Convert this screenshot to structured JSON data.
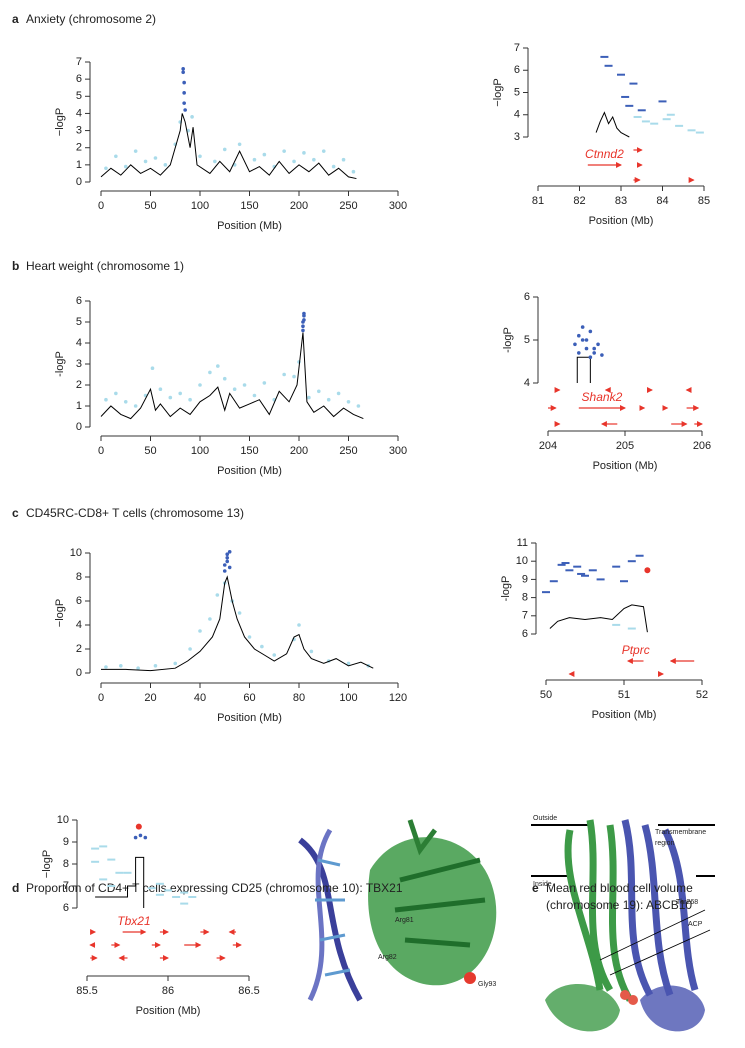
{
  "panels": [
    {
      "letter": "a",
      "title": [
        "Anxiety (chromosome 2)"
      ]
    },
    {
      "letter": "b",
      "title": [
        "Heart weight (chromosome 1)"
      ]
    },
    {
      "letter": "c",
      "title": [
        "CD45RC-CD8+ T cells (chromosome 13)"
      ]
    },
    {
      "letter": "d",
      "title": [
        "Proportion of CD4+ T cells expressing CD25 (chromosome 10): TBX21"
      ]
    },
    {
      "letter": "e",
      "title": [
        "Mean red blood cell volume",
        "(chromosome 19): ABCB10"
      ]
    }
  ],
  "structures": {
    "d": [
      "Arg81",
      "Arg82",
      "Gly93"
    ],
    "e": [
      "Outside",
      "Transmembrane",
      "region",
      "Inside",
      "Thr268",
      "ACP"
    ]
  },
  "chart_data": [
    {
      "type": "locus",
      "xlabel": "Position (Mb)",
      "ylabel": "−logP",
      "xlim": [
        0,
        300
      ],
      "ylim": [
        0,
        7
      ],
      "xticks": [
        0,
        50,
        100,
        150,
        200,
        250,
        300
      ],
      "yticks": [
        0,
        1,
        2,
        3,
        4,
        5,
        6,
        7
      ],
      "series": [
        {
          "mode": "points",
          "color": "#a9dbea",
          "x": [
            5,
            15,
            25,
            35,
            45,
            55,
            65,
            75,
            80,
            88,
            92,
            100,
            115,
            125,
            135,
            140,
            155,
            165,
            175,
            185,
            195,
            205,
            215,
            225,
            235,
            245,
            255
          ],
          "values": [
            0.8,
            1.5,
            0.9,
            1.8,
            1.2,
            1.4,
            1.0,
            2.2,
            3.5,
            3.0,
            3.8,
            1.5,
            1.2,
            1.9,
            1.0,
            2.2,
            1.3,
            1.6,
            0.9,
            1.8,
            1.2,
            1.7,
            1.3,
            1.8,
            0.9,
            1.3,
            0.6
          ]
        },
        {
          "mode": "line",
          "color": "#000000",
          "x": [
            0,
            10,
            20,
            30,
            40,
            50,
            60,
            70,
            80,
            82,
            85,
            90,
            93,
            97,
            110,
            120,
            130,
            140,
            150,
            160,
            170,
            180,
            190,
            200,
            210,
            220,
            230,
            240,
            250,
            258
          ],
          "values": [
            0.3,
            0.8,
            0.4,
            1.0,
            0.5,
            0.8,
            0.4,
            1.0,
            3.0,
            4.0,
            3.5,
            2.0,
            3.2,
            1.0,
            0.5,
            1.2,
            0.6,
            1.8,
            0.6,
            0.9,
            0.4,
            1.2,
            0.5,
            1.0,
            0.6,
            1.1,
            0.4,
            0.8,
            0.3,
            0.2
          ]
        },
        {
          "mode": "points",
          "color": "#3c5fb8",
          "x": [
            83,
            83,
            84,
            84,
            84,
            85
          ],
          "values": [
            6.6,
            6.4,
            5.8,
            5.2,
            4.6,
            4.2
          ]
        }
      ]
    },
    {
      "type": "locus",
      "xlabel": "Position (Mb)",
      "ylabel": "−logP",
      "xlim": [
        81,
        85
      ],
      "ylim": [
        3,
        7
      ],
      "xticks": [
        81,
        82,
        83,
        84,
        85
      ],
      "yticks": [
        3,
        4,
        5,
        6,
        7
      ],
      "series": [
        {
          "mode": "dash",
          "color": "#a9dbea",
          "x": [
            83.4,
            83.6,
            83.8,
            84.1,
            84.2,
            84.4,
            84.7,
            84.9
          ],
          "values": [
            3.9,
            3.7,
            3.6,
            3.8,
            4.0,
            3.5,
            3.3,
            3.2
          ]
        },
        {
          "mode": "line",
          "color": "#000000",
          "x": [
            82.4,
            82.5,
            82.6,
            82.7,
            82.8,
            82.9,
            83.0,
            83.1,
            83.2
          ],
          "values": [
            3.2,
            3.7,
            4.1,
            3.6,
            3.9,
            3.4,
            3.2,
            3.1,
            3.0
          ]
        },
        {
          "mode": "dash",
          "color": "#3c5fb8",
          "x": [
            82.6,
            82.7,
            83.0,
            83.3,
            83.1,
            83.2,
            83.5,
            84.0
          ],
          "values": [
            6.6,
            6.2,
            5.8,
            5.4,
            4.8,
            4.4,
            4.2,
            4.6
          ]
        }
      ],
      "genes": [
        [
          {
            "start": 83.3,
            "end": 83.5
          }
        ],
        [
          {
            "label": "Ctnnd2",
            "start": 82.2,
            "end": 83.0
          },
          {
            "start": 83.4,
            "end": 83.5
          }
        ],
        [
          {
            "start": 83.3,
            "end": 83.45
          },
          {
            "start": 84.7,
            "end": 84.75
          }
        ]
      ]
    },
    {
      "type": "locus",
      "xlabel": "Position (Mb)",
      "ylabel": "-logP",
      "xlim": [
        0,
        300
      ],
      "ylim": [
        0,
        6
      ],
      "xticks": [
        0,
        50,
        100,
        150,
        200,
        250,
        300
      ],
      "yticks": [
        0,
        1,
        2,
        3,
        4,
        5,
        6
      ],
      "series": [
        {
          "mode": "points",
          "color": "#a9dbea",
          "x": [
            5,
            15,
            25,
            35,
            45,
            52,
            60,
            70,
            80,
            90,
            100,
            110,
            118,
            125,
            135,
            145,
            155,
            165,
            175,
            185,
            195,
            200,
            210,
            220,
            230,
            240,
            250,
            260
          ],
          "values": [
            1.3,
            1.6,
            1.2,
            1.0,
            1.5,
            2.8,
            1.8,
            1.4,
            1.6,
            1.3,
            2.0,
            2.6,
            2.9,
            2.3,
            1.8,
            2.0,
            1.5,
            2.1,
            1.3,
            2.5,
            2.4,
            3.1,
            1.4,
            1.7,
            1.3,
            1.6,
            1.2,
            1.0
          ]
        },
        {
          "mode": "line",
          "color": "#000000",
          "x": [
            0,
            10,
            20,
            30,
            40,
            50,
            55,
            60,
            70,
            80,
            90,
            100,
            110,
            118,
            125,
            130,
            140,
            150,
            160,
            170,
            180,
            190,
            198,
            204,
            208,
            215,
            225,
            235,
            245,
            255,
            265
          ],
          "values": [
            0.5,
            1.0,
            0.6,
            0.4,
            0.9,
            1.8,
            0.8,
            1.1,
            0.5,
            0.9,
            0.6,
            1.2,
            1.5,
            1.9,
            0.8,
            1.6,
            0.9,
            1.1,
            1.3,
            0.6,
            1.7,
            1.2,
            2.0,
            4.5,
            1.2,
            0.7,
            1.0,
            0.5,
            0.9,
            0.6,
            0.4
          ]
        },
        {
          "mode": "points",
          "color": "#3c5fb8",
          "x": [
            204,
            204,
            204,
            205,
            205,
            205
          ],
          "values": [
            4.6,
            4.8,
            5.0,
            5.1,
            5.3,
            5.4
          ]
        }
      ]
    },
    {
      "type": "locus",
      "xlabel": "Position (Mb)",
      "ylabel": "-logP",
      "xlim": [
        204,
        206
      ],
      "ylim": [
        4,
        6
      ],
      "xticks": [
        204,
        205,
        206
      ],
      "yticks": [
        4,
        5,
        6
      ],
      "series": [
        {
          "mode": "line",
          "color": "#000000",
          "x": [
            204.38,
            204.38,
            204.55,
            204.55
          ],
          "values": [
            4.0,
            4.6,
            4.6,
            4.0
          ]
        },
        {
          "mode": "points",
          "color": "#3c5fb8",
          "x": [
            204.35,
            204.4,
            204.45,
            204.5,
            204.55,
            204.6,
            204.65,
            204.4,
            204.5,
            204.6,
            204.7,
            204.45,
            204.55
          ],
          "values": [
            4.9,
            5.1,
            5.3,
            5.0,
            5.2,
            4.8,
            4.9,
            4.7,
            4.8,
            4.7,
            4.65,
            5.0,
            4.6
          ]
        }
      ],
      "genes": [
        [
          {
            "start": 204.1,
            "end": 204.15
          },
          {
            "start": 204.8,
            "end": 204.75
          },
          {
            "start": 205.3,
            "end": 205.35
          },
          {
            "start": 205.85,
            "end": 205.8
          }
        ],
        [
          {
            "start": 204.0,
            "end": 204.1
          },
          {
            "label": "Shank2",
            "start": 204.4,
            "end": 205.0
          },
          {
            "start": 205.2,
            "end": 205.25
          },
          {
            "start": 205.5,
            "end": 205.55
          },
          {
            "start": 205.8,
            "end": 205.95
          }
        ],
        [
          {
            "start": 204.1,
            "end": 204.15
          },
          {
            "start": 204.9,
            "end": 204.7
          },
          {
            "start": 205.6,
            "end": 205.8
          },
          {
            "start": 205.9,
            "end": 206.0
          }
        ]
      ]
    },
    {
      "type": "locus",
      "xlabel": "Position (Mb)",
      "ylabel": "−logP",
      "xlim": [
        0,
        120
      ],
      "ylim": [
        0,
        10
      ],
      "xticks": [
        0,
        20,
        40,
        60,
        80,
        100,
        120
      ],
      "yticks": [
        0,
        2,
        4,
        6,
        8,
        10
      ],
      "series": [
        {
          "mode": "points",
          "color": "#a9dbea",
          "x": [
            2,
            8,
            15,
            22,
            30,
            36,
            40,
            44,
            47,
            50,
            53,
            56,
            60,
            65,
            70,
            78,
            80,
            85,
            92,
            100,
            108
          ],
          "values": [
            0.5,
            0.6,
            0.4,
            0.6,
            0.8,
            2.0,
            3.5,
            4.5,
            6.5,
            7.5,
            6.0,
            5.0,
            3.0,
            2.2,
            1.5,
            2.8,
            4.0,
            1.8,
            1.0,
            0.8,
            0.6
          ]
        },
        {
          "mode": "line",
          "color": "#000000",
          "x": [
            0,
            10,
            20,
            30,
            35,
            40,
            45,
            48,
            50,
            51,
            53,
            55,
            58,
            62,
            66,
            70,
            75,
            78,
            80,
            82,
            85,
            90,
            95,
            100,
            105,
            110
          ],
          "values": [
            0.3,
            0.3,
            0.2,
            0.4,
            1.0,
            1.8,
            3.0,
            4.5,
            7.5,
            8.0,
            6.0,
            4.5,
            3.0,
            2.0,
            1.5,
            1.0,
            1.6,
            3.0,
            3.2,
            2.0,
            1.2,
            0.8,
            1.2,
            0.6,
            0.9,
            0.4
          ]
        },
        {
          "mode": "points",
          "color": "#3c5fb8",
          "x": [
            50,
            50,
            51,
            51,
            51,
            52,
            52
          ],
          "values": [
            8.5,
            9.0,
            9.3,
            9.6,
            9.9,
            10.1,
            8.8
          ]
        }
      ]
    },
    {
      "type": "locus",
      "xlabel": "Position (Mb)",
      "ylabel": "-logP",
      "xlim": [
        50,
        52
      ],
      "ylim": [
        6,
        11
      ],
      "xticks": [
        50,
        51,
        52
      ],
      "yticks": [
        6,
        7,
        8,
        9,
        10,
        11
      ],
      "series": [
        {
          "mode": "dash",
          "color": "#3c5fb8",
          "x": [
            50.0,
            50.1,
            50.2,
            50.3,
            50.4,
            50.5,
            50.6,
            50.7,
            50.9,
            51.0,
            51.1,
            51.2,
            50.25,
            50.45
          ],
          "values": [
            8.3,
            8.9,
            9.8,
            9.5,
            9.7,
            9.2,
            9.5,
            9.0,
            9.7,
            8.9,
            10.0,
            10.3,
            9.9,
            9.3
          ]
        },
        {
          "mode": "dash",
          "color": "#a9dbea",
          "x": [
            50.9,
            51.1
          ],
          "values": [
            6.5,
            6.3
          ]
        },
        {
          "mode": "line",
          "color": "#000000",
          "x": [
            50.05,
            50.15,
            50.3,
            50.5,
            50.7,
            50.85,
            51.0,
            51.1,
            51.25,
            51.3
          ],
          "values": [
            6.3,
            6.7,
            6.9,
            6.8,
            6.9,
            6.8,
            7.4,
            7.6,
            7.5,
            6.1
          ]
        },
        {
          "mode": "points",
          "color": "#e8352b",
          "x": [
            51.3
          ],
          "values": [
            9.5
          ]
        }
      ],
      "genes": [
        [],
        [
          {
            "label": "Ptprc",
            "start": 51.25,
            "end": 51.05
          },
          {
            "start": 51.9,
            "end": 51.6
          }
        ],
        [
          {
            "start": 50.35,
            "end": 50.3
          },
          {
            "start": 51.45,
            "end": 51.5
          }
        ]
      ]
    },
    {
      "type": "locus",
      "xlabel": "Position (Mb)",
      "ylabel": "−logP",
      "xlim": [
        85.5,
        86.5
      ],
      "ylim": [
        6,
        10
      ],
      "xticks": [
        85.5,
        86,
        86.5
      ],
      "yticks": [
        6,
        7,
        8,
        9,
        10
      ],
      "series": [
        {
          "mode": "dash",
          "color": "#a9dbea",
          "x": [
            85.55,
            85.6,
            85.65,
            85.55,
            85.6,
            85.7,
            85.65,
            85.75,
            85.9,
            86.0,
            86.1,
            85.95,
            86.05,
            86.15,
            85.95,
            86.1
          ],
          "values": [
            8.7,
            8.8,
            8.2,
            8.1,
            7.3,
            7.6,
            7.0,
            7.6,
            6.9,
            6.8,
            6.7,
            6.6,
            6.5,
            6.5,
            7.1,
            6.2
          ]
        },
        {
          "mode": "line",
          "color": "#000000",
          "x": [
            85.55,
            85.75,
            85.75,
            85.8,
            85.8,
            85.85,
            85.85
          ],
          "values": [
            6.5,
            6.5,
            7.0,
            7.0,
            8.3,
            8.3,
            6.0
          ]
        },
        {
          "mode": "points",
          "color": "#3c5fb8",
          "x": [
            85.8,
            85.83,
            85.86
          ],
          "values": [
            9.2,
            9.3,
            9.2
          ]
        },
        {
          "mode": "points",
          "color": "#e8352b",
          "x": [
            85.82
          ],
          "values": [
            9.7
          ]
        }
      ],
      "genes": [
        [
          {
            "label": "Tbx21",
            "start": 85.72,
            "end": 85.86
          },
          {
            "start": 85.52,
            "end": 85.55
          },
          {
            "start": 85.95,
            "end": 86.0
          },
          {
            "start": 86.2,
            "end": 86.25
          },
          {
            "start": 86.42,
            "end": 86.38
          }
        ],
        [
          {
            "start": 85.55,
            "end": 85.52
          },
          {
            "start": 85.65,
            "end": 85.7
          },
          {
            "start": 85.9,
            "end": 85.95
          },
          {
            "start": 86.1,
            "end": 86.2
          },
          {
            "start": 86.4,
            "end": 86.45
          }
        ],
        [
          {
            "start": 85.52,
            "end": 85.56
          },
          {
            "start": 85.75,
            "end": 85.7
          },
          {
            "start": 85.95,
            "end": 86.0
          },
          {
            "start": 86.3,
            "end": 86.35
          }
        ]
      ]
    }
  ]
}
